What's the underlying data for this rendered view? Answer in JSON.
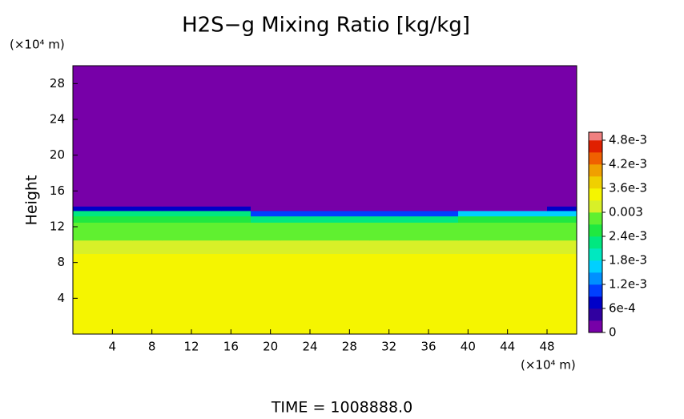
{
  "chart_data": {
    "type": "contour",
    "title": "H2S−g Mixing Ratio [kg/kg]",
    "y_label": "Height",
    "y_unit": "(×10⁴ m)",
    "x_unit": "(×10⁴ m)",
    "footer": "TIME = 1008888.0",
    "xlim": [
      0,
      51
    ],
    "ylim": [
      0,
      30
    ],
    "xticks": [
      4,
      8,
      12,
      16,
      20,
      24,
      28,
      32,
      36,
      40,
      44,
      48
    ],
    "yticks": [
      4,
      8,
      12,
      16,
      20,
      24,
      28
    ],
    "xbins": [
      0,
      3,
      6,
      9,
      12,
      15,
      18,
      21,
      24,
      27,
      30,
      33,
      36,
      39,
      42,
      45,
      48,
      51
    ],
    "ybins": [
      0,
      9,
      10.5,
      11.5,
      12.5,
      13.2,
      13.8,
      14.3,
      30
    ],
    "z": [
      [
        0.0035,
        0.0035,
        0.0035,
        0.0035,
        0.0035,
        0.0035,
        0.0035,
        0.0035,
        0.0035,
        0.0035,
        0.0035,
        0.0035,
        0.0035,
        0.0035,
        0.0035,
        0.0035,
        0.0035
      ],
      [
        0.0032,
        0.0032,
        0.0032,
        0.0032,
        0.0032,
        0.0032,
        0.0032,
        0.0032,
        0.0032,
        0.0032,
        0.0032,
        0.0032,
        0.0032,
        0.0032,
        0.0032,
        0.0032,
        0.0032
      ],
      [
        0.0027,
        0.0029,
        0.0029,
        0.0029,
        0.0029,
        0.0029,
        0.0029,
        0.0029,
        0.0029,
        0.0029,
        0.0029,
        0.0029,
        0.0029,
        0.0029,
        0.0029,
        0.0029,
        0.0029
      ],
      [
        0.0027,
        0.0027,
        0.0027,
        0.0027,
        0.0027,
        0.0027,
        0.0027,
        0.0027,
        0.0027,
        0.0027,
        0.0027,
        0.0027,
        0.0027,
        0.0027,
        0.0027,
        0.0027,
        0.0027
      ],
      [
        0.0024,
        0.0024,
        0.0024,
        0.0024,
        0.0024,
        0.0024,
        0.0021,
        0.0021,
        0.0021,
        0.0021,
        0.0021,
        0.0021,
        0.0021,
        0.0024,
        0.0024,
        0.0024,
        0.0024
      ],
      [
        0.0021,
        0.0021,
        0.0021,
        0.0021,
        0.0021,
        0.0021,
        0.0009,
        0.0009,
        0.0009,
        0.0009,
        0.0009,
        0.0009,
        0.0009,
        0.0015,
        0.0015,
        0.0015,
        0.0015
      ],
      [
        0.0006,
        0.0006,
        0.0006,
        0.0006,
        0.0006,
        0.0006,
        0,
        0,
        0,
        0,
        0,
        0,
        0,
        0,
        0,
        0,
        0.0006
      ],
      [
        0,
        0,
        0,
        0,
        0,
        0,
        0,
        0,
        0,
        0,
        0,
        0,
        0,
        0,
        0,
        0,
        0
      ]
    ],
    "clim": [
      0,
      0.005
    ],
    "level_step": 0.0003,
    "colormap": [
      "#7700a8",
      "#3000a0",
      "#0000c8",
      "#0040ff",
      "#0090ff",
      "#00d0ff",
      "#00e8c0",
      "#00e880",
      "#20e840",
      "#60f030",
      "#d8f028",
      "#f5f500",
      "#f0d000",
      "#f0a000",
      "#f06000",
      "#e02000",
      "#f08080"
    ],
    "cticks": [
      0,
      {
        "value": 0.0006,
        "label": "6e-4"
      },
      {
        "value": 0.0012,
        "label": "1.2e-3"
      },
      {
        "value": 0.0018,
        "label": "1.8e-3"
      },
      {
        "value": 0.0024,
        "label": "2.4e-3"
      },
      0.003,
      {
        "value": 0.0036,
        "label": "3.6e-3"
      },
      {
        "value": 0.0042,
        "label": "4.2e-3"
      },
      {
        "value": 0.0048,
        "label": "4.8e-3"
      }
    ]
  }
}
